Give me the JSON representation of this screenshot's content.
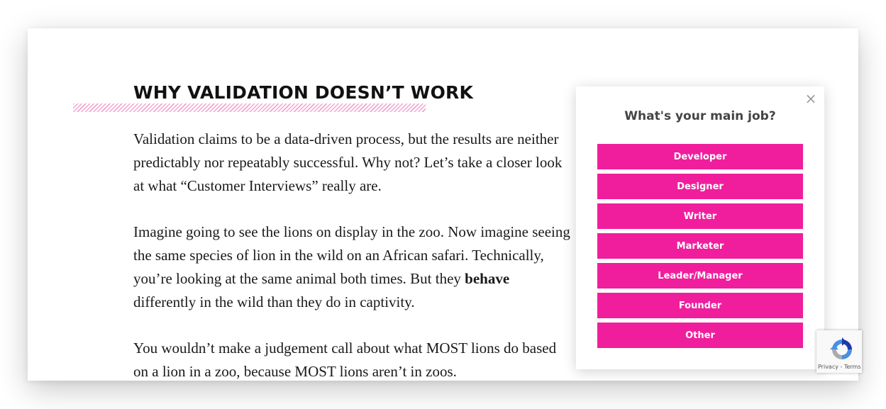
{
  "article": {
    "heading": "WHY VALIDATION DOESN’T WORK",
    "p1": "Validation claims to be a data-driven process, but the results are neither predictably nor repeatably successful. Why not? Let’s take a closer look at what “Customer Interviews” really are.",
    "p2_before": "Imagine going to see the lions on display in the zoo. Now imagine seeing the same species of lion in the wild on an African safari. Technically, you’re looking at the same animal both times. But they ",
    "p2_bold": "behave",
    "p2_after": " differently in the wild than they do in captivity.",
    "p3": "You wouldn’t make a judgement call about what MOST lions do based on a lion in a zoo, because MOST lions aren’t in zoos."
  },
  "popup": {
    "close_icon": "close-icon",
    "close_glyph": "×",
    "title": "What's your main job?",
    "accent_color": "#f01e9d",
    "options": [
      {
        "label": "Developer"
      },
      {
        "label": "Designer"
      },
      {
        "label": "Writer"
      },
      {
        "label": "Marketer"
      },
      {
        "label": "Leader/Manager"
      },
      {
        "label": "Founder"
      },
      {
        "label": "Other"
      }
    ]
  },
  "recaptcha": {
    "icon": "recaptcha-icon",
    "text": "Privacy - Terms"
  }
}
